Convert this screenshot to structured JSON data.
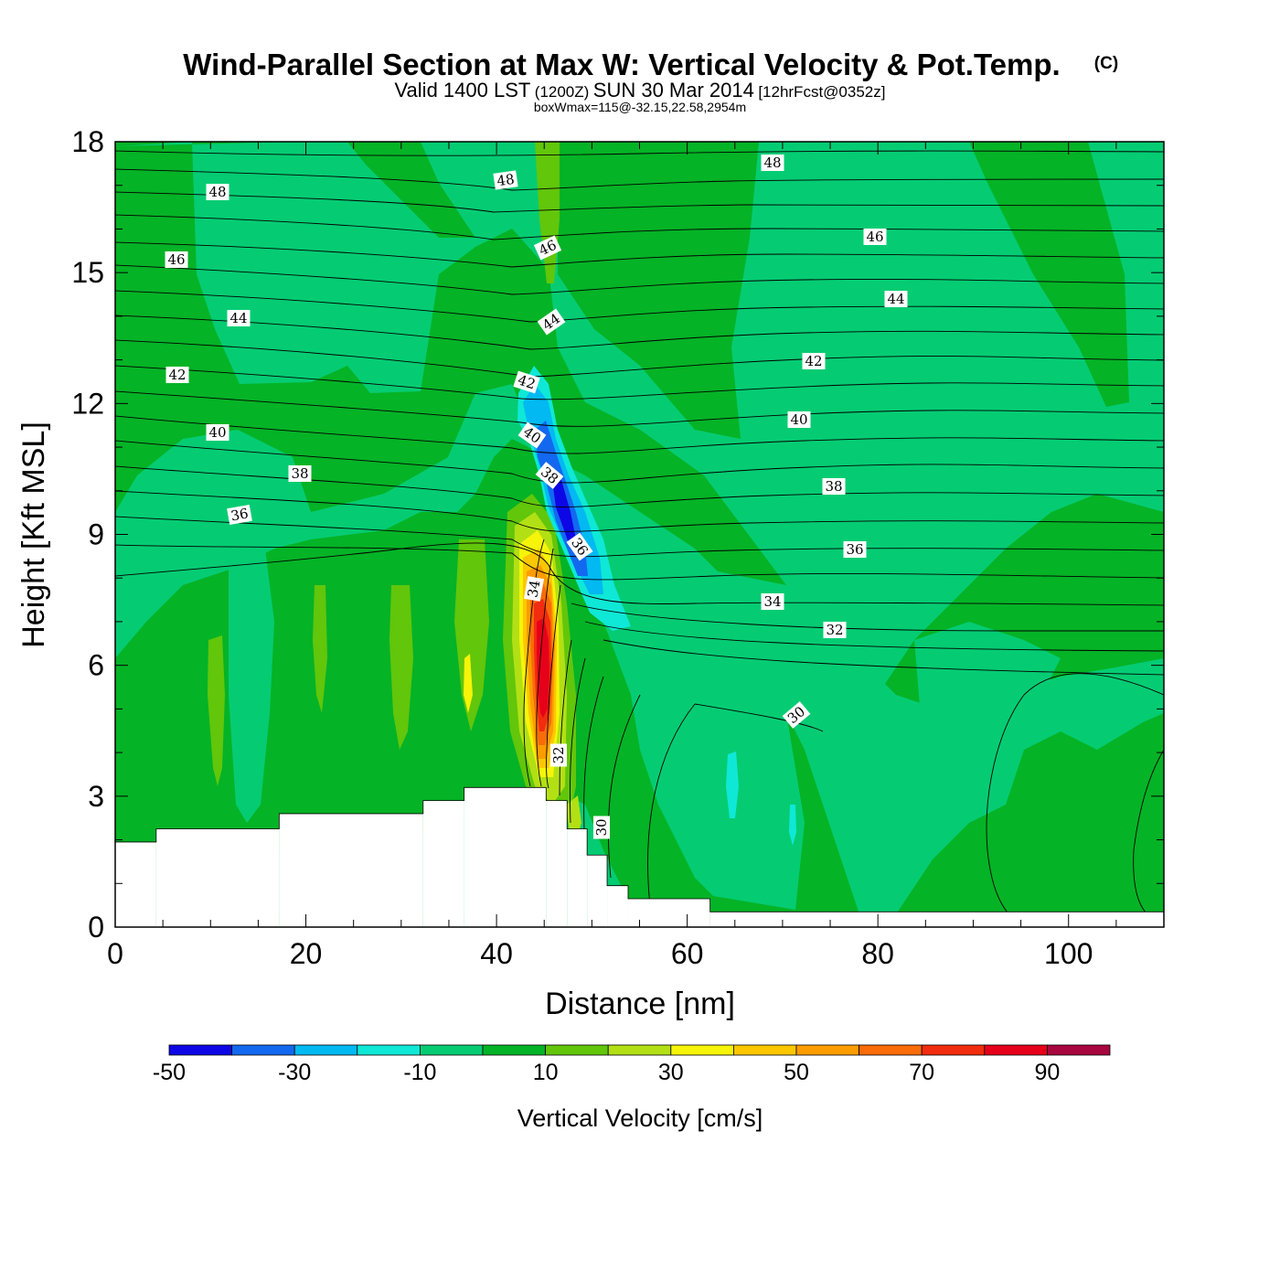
{
  "title": {
    "main": "Wind-Parallel Section at Max W: Vertical Velocity & Pot.Temp.",
    "copyright": "(C)",
    "valid_prefix": "Valid 1400 LST",
    "valid_utc": "(1200Z)",
    "valid_date": "SUN 30 Mar 2014",
    "forecast": "[12hrFcst@0352z]",
    "box_info": "boxWmax=115@-32.15,22.58,2954m"
  },
  "chart_data": {
    "type": "heatmap",
    "subtype": "vertical cross-section with filled contours and line contours",
    "xlabel": "Distance [nm]",
    "ylabel": "Height [Kft MSL]",
    "xlim": [
      0,
      110
    ],
    "ylim": [
      0,
      18
    ],
    "xticks": [
      0,
      20,
      40,
      60,
      80,
      100
    ],
    "yticks": [
      0,
      3,
      6,
      9,
      12,
      15,
      18
    ],
    "filled_variable": "Vertical Velocity [cm/s]",
    "line_variable": "Potential temperature",
    "background_value_cm_s": 0,
    "terrain_kft": [
      {
        "x": [
          0,
          4.3
        ],
        "top": 1.95
      },
      {
        "x": [
          4.3,
          17.2
        ],
        "top": 2.25
      },
      {
        "x": [
          17.2,
          32.3
        ],
        "top": 2.6
      },
      {
        "x": [
          32.3,
          36.6
        ],
        "top": 2.9
      },
      {
        "x": [
          36.6,
          45.2
        ],
        "top": 3.2
      },
      {
        "x": [
          45.2,
          47.4
        ],
        "top": 2.9
      },
      {
        "x": [
          47.4,
          49.5
        ],
        "top": 2.25
      },
      {
        "x": [
          49.5,
          51.6
        ],
        "top": 1.65
      },
      {
        "x": [
          51.6,
          53.8
        ],
        "top": 0.95
      },
      {
        "x": [
          53.8,
          62.4
        ],
        "top": 0.65
      },
      {
        "x": [
          62.4,
          110
        ],
        "top": 0.35
      }
    ],
    "vertical_velocity_features": [
      {
        "name": "updraft core",
        "x": 45.3,
        "y": 6.2,
        "value": 90
      },
      {
        "name": "downdraft core",
        "x": 47.4,
        "y": 9.2,
        "value": -45
      },
      {
        "name": "weak updraft",
        "x": 11.0,
        "y": 5.6,
        "value": 20
      },
      {
        "name": "weak updraft",
        "x": 37.3,
        "y": 6.2,
        "value": 20
      },
      {
        "name": "weak downdraft",
        "x": 65.0,
        "y": 3.6,
        "value": -15
      },
      {
        "name": "weak downdraft",
        "x": 71.0,
        "y": 2.4,
        "value": -15
      },
      {
        "name": "updraft column",
        "x": 46.5,
        "y": 14.5,
        "value": 15
      }
    ],
    "theta_contour_labels": [
      "48",
      "48",
      "48",
      "46",
      "46",
      "46",
      "44",
      "44",
      "44",
      "42",
      "42",
      "42",
      "40",
      "40",
      "40",
      "38",
      "38",
      "38",
      "36",
      "36",
      "36",
      "34",
      "34",
      "32",
      "32",
      "30",
      "30"
    ],
    "colorbar": {
      "label": "Vertical Velocity [cm/s]",
      "bounds": [
        -50,
        -40,
        -30,
        -20,
        -10,
        0,
        10,
        20,
        30,
        40,
        50,
        60,
        70,
        80,
        90,
        100
      ],
      "tick_labels": [
        "-50",
        "-30",
        "-10",
        "10",
        "30",
        "50",
        "70",
        "90"
      ],
      "colors": [
        "#0d07e6",
        "#1368f0",
        "#02b9f2",
        "#0fe8d6",
        "#05cc73",
        "#05b326",
        "#62c60b",
        "#b2e014",
        "#f6f409",
        "#fcc700",
        "#fc9c00",
        "#fa6b0a",
        "#f22c0e",
        "#e6001a",
        "#a8063f"
      ]
    }
  }
}
